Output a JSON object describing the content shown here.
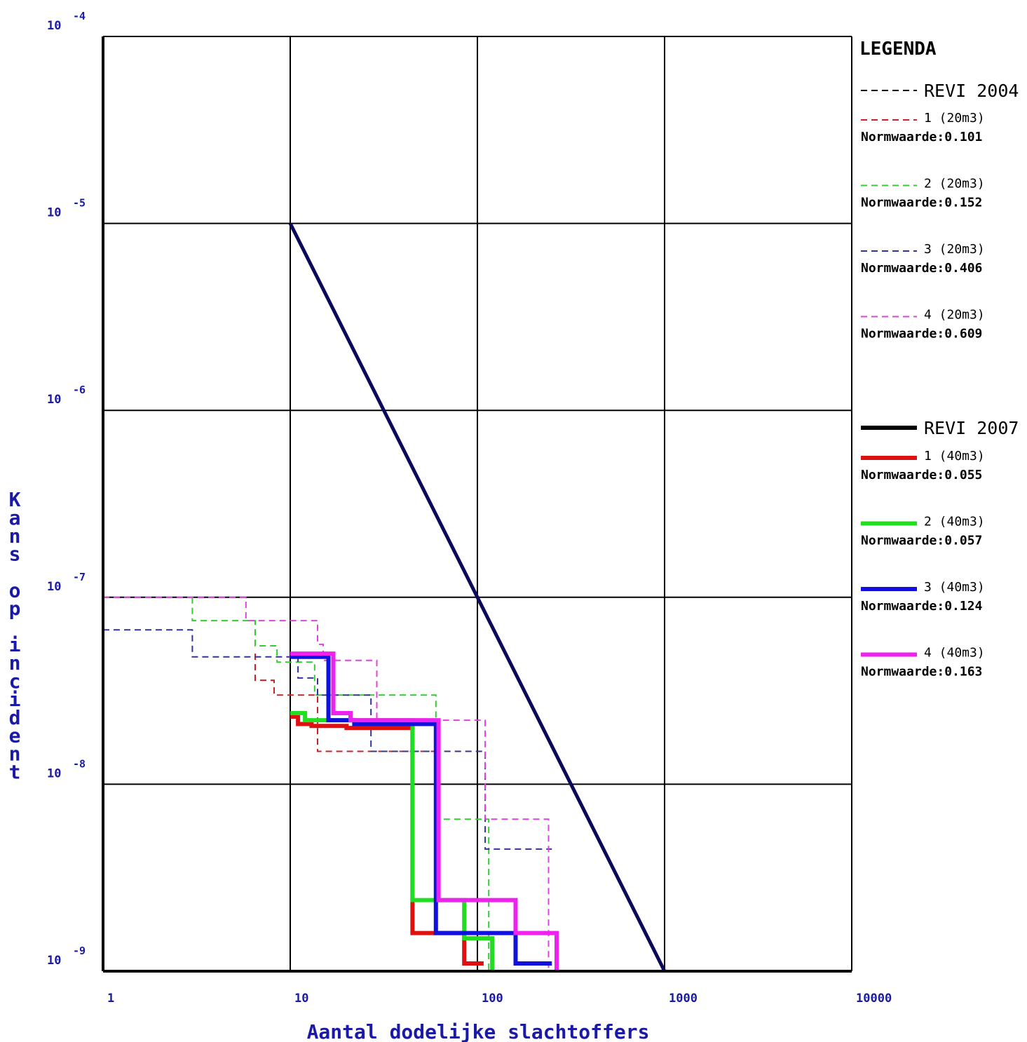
{
  "chart_data": {
    "type": "line",
    "step": true,
    "xlabel": "Aantal dodelijke slachtoffers",
    "ylabel": "Kans op incident",
    "x_scale": "log",
    "y_scale": "log",
    "xlim": [
      1,
      10000
    ],
    "ylim": [
      1e-09,
      0.0001
    ],
    "grid": true,
    "x_ticks": [
      {
        "value": 1,
        "label": "1"
      },
      {
        "value": 10,
        "label": "10"
      },
      {
        "value": 100,
        "label": "100"
      },
      {
        "value": 1000,
        "label": "1000"
      },
      {
        "value": 10000,
        "label": "10000"
      }
    ],
    "y_ticks": [
      {
        "value": 0.0001,
        "base": "10",
        "exp": "-4"
      },
      {
        "value": 1e-05,
        "base": "10",
        "exp": "-5"
      },
      {
        "value": 1e-06,
        "base": "10",
        "exp": "-6"
      },
      {
        "value": 1e-07,
        "base": "10",
        "exp": "-7"
      },
      {
        "value": 1e-08,
        "base": "10",
        "exp": "-8"
      },
      {
        "value": 1e-09,
        "base": "10",
        "exp": "-9"
      }
    ],
    "legend": {
      "title": "LEGENDA",
      "placement": "right",
      "norm_prefix": "Normwaarde:"
    },
    "groups": [
      {
        "label": "REVI 2004",
        "dash": true,
        "color": "#000000"
      },
      {
        "label": "REVI 2007",
        "dash": false,
        "color": "#000000"
      }
    ],
    "norm_line": {
      "color": "#0a0a5a",
      "points": [
        [
          10,
          1e-05
        ],
        [
          1000,
          1e-09
        ]
      ]
    },
    "series": [
      {
        "name": "1 (20m3)",
        "normwaarde": "0.101",
        "color": "#cc2222",
        "dash": true,
        "group": 0,
        "points": [
          [
            6.5,
            5e-08
          ],
          [
            6.5,
            3.6e-08
          ],
          [
            8.2,
            3.6e-08
          ],
          [
            8.2,
            3e-08
          ],
          [
            14,
            3e-08
          ],
          [
            14,
            1.5e-08
          ],
          [
            60,
            1.5e-08
          ],
          [
            60,
            5e-09
          ]
        ]
      },
      {
        "name": "2 (20m3)",
        "normwaarde": "0.152",
        "color": "#33cc33",
        "dash": true,
        "group": 0,
        "points": [
          [
            3,
            1e-07
          ],
          [
            3,
            7.5e-08
          ],
          [
            6.5,
            7.5e-08
          ],
          [
            6.5,
            5.5e-08
          ],
          [
            8.5,
            5.5e-08
          ],
          [
            8.5,
            4.5e-08
          ],
          [
            13.5,
            4.5e-08
          ],
          [
            13.5,
            3e-08
          ],
          [
            60,
            3e-08
          ],
          [
            60,
            6.5e-09
          ],
          [
            115,
            6.5e-09
          ],
          [
            115,
            1e-09
          ]
        ]
      },
      {
        "name": "3 (20m3)",
        "normwaarde": "0.406",
        "color": "#333399",
        "dash": true,
        "group": 0,
        "points": [
          [
            1,
            6.7e-08
          ],
          [
            3,
            6.7e-08
          ],
          [
            3,
            4.8e-08
          ],
          [
            11,
            4.8e-08
          ],
          [
            11,
            3.7e-08
          ],
          [
            14,
            3.7e-08
          ],
          [
            14,
            3e-08
          ],
          [
            27,
            3e-08
          ],
          [
            27,
            1.5e-08
          ],
          [
            100,
            1.5e-08
          ],
          [
            110,
            1.5e-08
          ],
          [
            110,
            4.5e-09
          ],
          [
            250,
            4.5e-09
          ]
        ]
      },
      {
        "name": "4 (20m3)",
        "normwaarde": "0.609",
        "color": "#dd44dd",
        "dash": true,
        "group": 0,
        "points": [
          [
            1,
            1e-07
          ],
          [
            5.8,
            1e-07
          ],
          [
            5.8,
            7.5e-08
          ],
          [
            14,
            7.5e-08
          ],
          [
            14,
            5.6e-08
          ],
          [
            15,
            5.6e-08
          ],
          [
            15,
            4.6e-08
          ],
          [
            29,
            4.6e-08
          ],
          [
            29,
            2.2e-08
          ],
          [
            110,
            2.2e-08
          ],
          [
            110,
            6.5e-09
          ],
          [
            240,
            6.5e-09
          ],
          [
            240,
            1e-09
          ]
        ]
      },
      {
        "name": "1 (40m3)",
        "normwaarde": "0.055",
        "color": "#dd1111",
        "dash": false,
        "group": 1,
        "points": [
          [
            10,
            2.3e-08
          ],
          [
            11,
            2.3e-08
          ],
          [
            11,
            2.1e-08
          ],
          [
            13,
            2.1e-08
          ],
          [
            13,
            2.05e-08
          ],
          [
            20,
            2.05e-08
          ],
          [
            20,
            2e-08
          ],
          [
            45,
            2e-08
          ],
          [
            45,
            1.6e-09
          ],
          [
            85,
            1.6e-09
          ],
          [
            85,
            1.1e-09
          ],
          [
            108,
            1.1e-09
          ]
        ]
      },
      {
        "name": "2 (40m3)",
        "normwaarde": "0.057",
        "color": "#22dd22",
        "dash": false,
        "group": 1,
        "points": [
          [
            10,
            2.4e-08
          ],
          [
            12,
            2.4e-08
          ],
          [
            12,
            2.2e-08
          ],
          [
            45,
            2.2e-08
          ],
          [
            45,
            2.4e-09
          ],
          [
            65,
            2.4e-09
          ],
          [
            65,
            2.4e-09
          ],
          [
            85,
            2.4e-09
          ],
          [
            85,
            1.5e-09
          ],
          [
            120,
            1.5e-09
          ],
          [
            120,
            1e-09
          ]
        ]
      },
      {
        "name": "3 (40m3)",
        "normwaarde": "0.124",
        "color": "#1111dd",
        "dash": false,
        "group": 1,
        "points": [
          [
            10,
            4.8e-08
          ],
          [
            16,
            4.8e-08
          ],
          [
            16,
            2.2e-08
          ],
          [
            22,
            2.2e-08
          ],
          [
            22,
            2.1e-08
          ],
          [
            60,
            2.1e-08
          ],
          [
            60,
            1.6e-09
          ],
          [
            130,
            1.6e-09
          ],
          [
            160,
            1.6e-09
          ],
          [
            160,
            1.1e-09
          ],
          [
            250,
            1.1e-09
          ]
        ]
      },
      {
        "name": "4 (40m3)",
        "normwaarde": "0.163",
        "color": "#ee22ee",
        "dash": false,
        "group": 1,
        "points": [
          [
            10,
            5e-08
          ],
          [
            17,
            5e-08
          ],
          [
            17,
            2.4e-08
          ],
          [
            21,
            2.4e-08
          ],
          [
            21,
            2.2e-08
          ],
          [
            62,
            2.2e-08
          ],
          [
            62,
            2.4e-09
          ],
          [
            160,
            2.4e-09
          ],
          [
            160,
            1.6e-09
          ],
          [
            265,
            1.6e-09
          ],
          [
            265,
            1e-09
          ]
        ]
      }
    ]
  }
}
